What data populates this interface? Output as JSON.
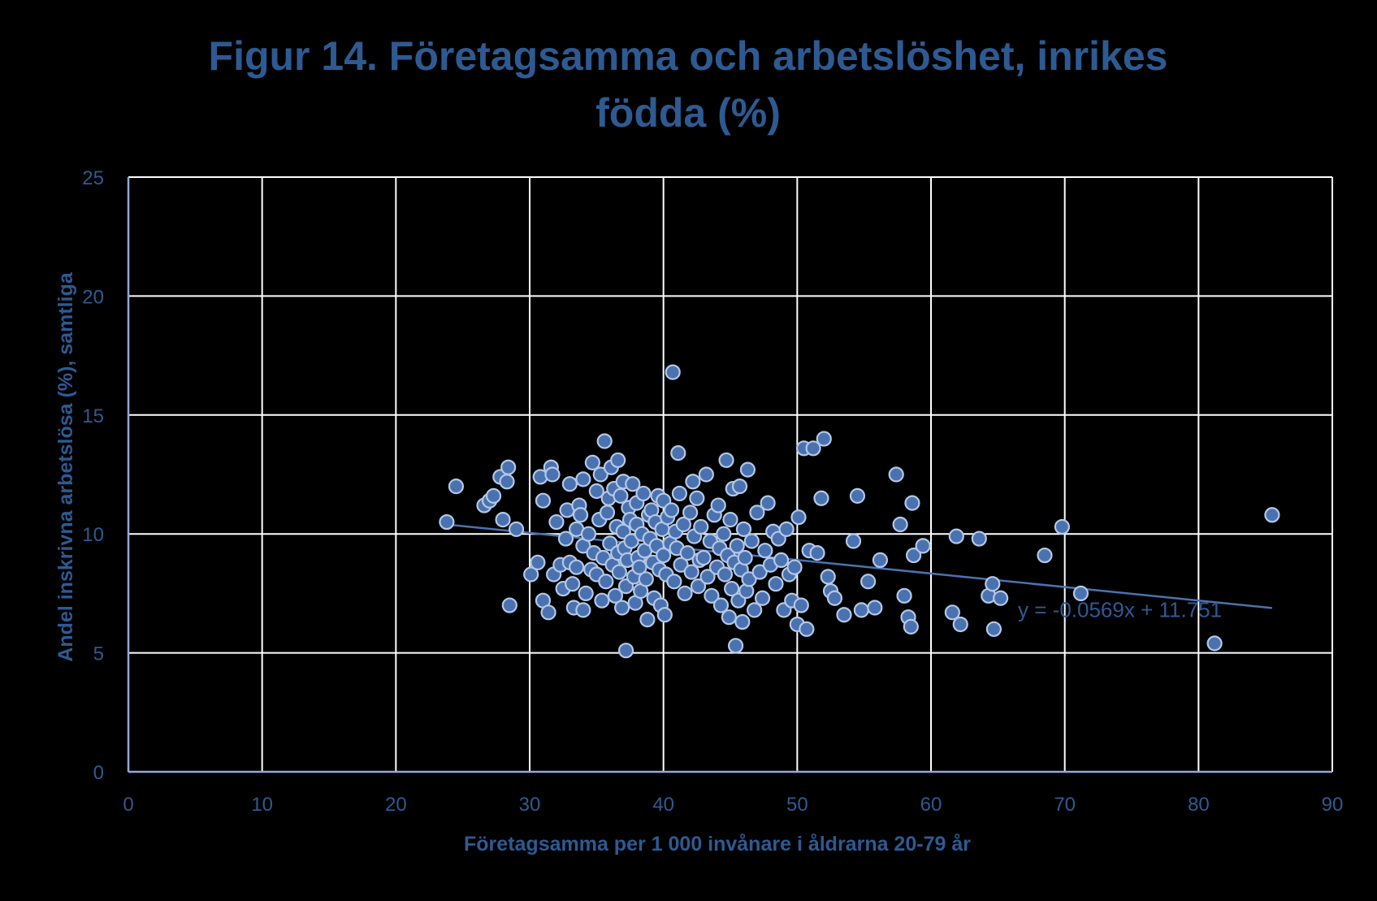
{
  "chart_data": {
    "type": "scatter",
    "title_line1": "Figur 14. Företagsamma och arbetslöshet, inrikes",
    "title_line2": "födda (%)",
    "xlabel": "Företagsamma per 1 000 invånare i åldrarna 20-79 år",
    "ylabel": "Andel inskrivna arbetslösa  (%), samtliga",
    "xlim": [
      0,
      90
    ],
    "ylim": [
      0,
      25
    ],
    "xticks": [
      0,
      10,
      20,
      30,
      40,
      50,
      60,
      70,
      80,
      90
    ],
    "yticks": [
      0,
      5,
      10,
      15,
      20,
      25
    ],
    "grid": true,
    "colors": {
      "background": "#000000",
      "grid": "#ffffff",
      "axis_text": "#2e5a92",
      "marker_fill": "#4a72b0",
      "marker_stroke": "#b4c8e6",
      "trendline": "#4a72b0"
    },
    "trendline": {
      "slope": -0.0569,
      "intercept": 11.751,
      "x_range": [
        23.5,
        85.5
      ],
      "equation": "y = -0.0569x + 11.751"
    },
    "points": [
      [
        23.8,
        10.5
      ],
      [
        24.5,
        12.0
      ],
      [
        26.6,
        11.2
      ],
      [
        27.0,
        11.4
      ],
      [
        27.3,
        11.6
      ],
      [
        27.8,
        12.4
      ],
      [
        28.0,
        10.6
      ],
      [
        28.3,
        12.2
      ],
      [
        28.4,
        12.8
      ],
      [
        28.5,
        7.0
      ],
      [
        29.0,
        10.2
      ],
      [
        30.1,
        8.3
      ],
      [
        30.6,
        8.8
      ],
      [
        30.8,
        12.4
      ],
      [
        31.0,
        11.4
      ],
      [
        31.0,
        7.2
      ],
      [
        31.4,
        6.7
      ],
      [
        31.6,
        12.8
      ],
      [
        31.7,
        12.5
      ],
      [
        31.8,
        8.3
      ],
      [
        32.0,
        10.5
      ],
      [
        32.3,
        8.7
      ],
      [
        32.5,
        7.7
      ],
      [
        32.7,
        9.8
      ],
      [
        32.8,
        11.0
      ],
      [
        33.0,
        8.8
      ],
      [
        33.0,
        12.1
      ],
      [
        33.2,
        7.9
      ],
      [
        33.3,
        6.9
      ],
      [
        33.5,
        8.6
      ],
      [
        33.5,
        10.2
      ],
      [
        33.7,
        11.2
      ],
      [
        33.8,
        10.8
      ],
      [
        34.0,
        12.3
      ],
      [
        34.0,
        9.5
      ],
      [
        34.0,
        6.8
      ],
      [
        34.2,
        7.5
      ],
      [
        34.4,
        10.0
      ],
      [
        34.6,
        8.5
      ],
      [
        34.7,
        13.0
      ],
      [
        34.8,
        9.2
      ],
      [
        35.0,
        11.8
      ],
      [
        35.0,
        8.3
      ],
      [
        35.2,
        10.6
      ],
      [
        35.3,
        12.5
      ],
      [
        35.4,
        7.2
      ],
      [
        35.5,
        9.0
      ],
      [
        35.6,
        13.9
      ],
      [
        35.7,
        8.0
      ],
      [
        35.8,
        10.9
      ],
      [
        35.9,
        11.5
      ],
      [
        36.0,
        9.6
      ],
      [
        36.1,
        12.8
      ],
      [
        36.2,
        8.7
      ],
      [
        36.3,
        11.9
      ],
      [
        36.4,
        7.4
      ],
      [
        36.5,
        10.3
      ],
      [
        36.6,
        13.1
      ],
      [
        36.6,
        9.2
      ],
      [
        36.7,
        8.4
      ],
      [
        36.8,
        11.6
      ],
      [
        36.9,
        6.9
      ],
      [
        37.0,
        10.1
      ],
      [
        37.0,
        12.2
      ],
      [
        37.1,
        9.4
      ],
      [
        37.2,
        7.8
      ],
      [
        37.2,
        5.1
      ],
      [
        37.3,
        8.9
      ],
      [
        37.4,
        11.1
      ],
      [
        37.5,
        10.6
      ],
      [
        37.6,
        9.7
      ],
      [
        37.7,
        12.1
      ],
      [
        37.8,
        8.2
      ],
      [
        37.9,
        7.1
      ],
      [
        38.0,
        10.4
      ],
      [
        38.0,
        11.3
      ],
      [
        38.1,
        9.0
      ],
      [
        38.2,
        8.6
      ],
      [
        38.3,
        7.6
      ],
      [
        38.4,
        10.0
      ],
      [
        38.5,
        11.7
      ],
      [
        38.6,
        9.3
      ],
      [
        38.7,
        8.1
      ],
      [
        38.8,
        6.4
      ],
      [
        38.9,
        10.8
      ],
      [
        39.0,
        9.8
      ],
      [
        39.1,
        11.0
      ],
      [
        39.2,
        8.8
      ],
      [
        39.3,
        7.3
      ],
      [
        39.4,
        10.5
      ],
      [
        39.5,
        9.5
      ],
      [
        39.6,
        11.6
      ],
      [
        39.7,
        8.5
      ],
      [
        39.8,
        7.0
      ],
      [
        39.9,
        10.2
      ],
      [
        40.0,
        9.1
      ],
      [
        40.0,
        11.4
      ],
      [
        40.1,
        6.6
      ],
      [
        40.2,
        8.3
      ],
      [
        40.3,
        10.7
      ],
      [
        40.5,
        9.6
      ],
      [
        40.6,
        11.0
      ],
      [
        40.7,
        16.8
      ],
      [
        40.8,
        8.0
      ],
      [
        40.9,
        10.1
      ],
      [
        41.0,
        9.4
      ],
      [
        41.1,
        13.4
      ],
      [
        41.2,
        11.7
      ],
      [
        41.3,
        8.7
      ],
      [
        41.5,
        10.4
      ],
      [
        41.6,
        7.5
      ],
      [
        41.8,
        9.2
      ],
      [
        42.0,
        10.9
      ],
      [
        42.1,
        8.4
      ],
      [
        42.2,
        12.2
      ],
      [
        42.3,
        9.9
      ],
      [
        42.5,
        11.5
      ],
      [
        42.6,
        7.8
      ],
      [
        42.7,
        8.9
      ],
      [
        42.8,
        10.3
      ],
      [
        43.0,
        9.0
      ],
      [
        43.2,
        12.5
      ],
      [
        43.3,
        8.2
      ],
      [
        43.5,
        9.7
      ],
      [
        43.6,
        7.4
      ],
      [
        43.8,
        10.8
      ],
      [
        44.0,
        8.6
      ],
      [
        44.1,
        11.2
      ],
      [
        44.2,
        9.4
      ],
      [
        44.3,
        7.0
      ],
      [
        44.5,
        10.0
      ],
      [
        44.6,
        8.3
      ],
      [
        44.7,
        13.1
      ],
      [
        44.8,
        9.1
      ],
      [
        44.9,
        6.5
      ],
      [
        45.0,
        10.6
      ],
      [
        45.1,
        7.7
      ],
      [
        45.2,
        11.9
      ],
      [
        45.3,
        8.8
      ],
      [
        45.4,
        5.3
      ],
      [
        45.5,
        9.5
      ],
      [
        45.6,
        7.2
      ],
      [
        45.7,
        12.0
      ],
      [
        45.8,
        8.5
      ],
      [
        45.9,
        6.3
      ],
      [
        46.0,
        10.2
      ],
      [
        46.1,
        9.0
      ],
      [
        46.2,
        7.6
      ],
      [
        46.3,
        12.7
      ],
      [
        46.4,
        8.1
      ],
      [
        46.6,
        9.7
      ],
      [
        46.8,
        6.8
      ],
      [
        47.0,
        10.9
      ],
      [
        47.2,
        8.4
      ],
      [
        47.4,
        7.3
      ],
      [
        47.6,
        9.3
      ],
      [
        47.8,
        11.3
      ],
      [
        48.0,
        8.7
      ],
      [
        48.2,
        10.1
      ],
      [
        48.4,
        7.9
      ],
      [
        48.6,
        9.8
      ],
      [
        48.8,
        8.9
      ],
      [
        49.0,
        6.8
      ],
      [
        49.2,
        10.2
      ],
      [
        49.4,
        8.3
      ],
      [
        49.6,
        7.2
      ],
      [
        49.8,
        8.6
      ],
      [
        50.0,
        6.2
      ],
      [
        50.1,
        10.7
      ],
      [
        50.3,
        7.0
      ],
      [
        50.5,
        13.6
      ],
      [
        50.7,
        6.0
      ],
      [
        50.9,
        9.3
      ],
      [
        51.2,
        13.6
      ],
      [
        51.5,
        9.2
      ],
      [
        51.8,
        11.5
      ],
      [
        52.0,
        14.0
      ],
      [
        52.3,
        8.2
      ],
      [
        52.5,
        7.6
      ],
      [
        52.8,
        7.3
      ],
      [
        53.5,
        6.6
      ],
      [
        54.2,
        9.7
      ],
      [
        54.5,
        11.6
      ],
      [
        54.8,
        6.8
      ],
      [
        55.3,
        8.0
      ],
      [
        55.8,
        6.9
      ],
      [
        56.2,
        8.9
      ],
      [
        57.4,
        12.5
      ],
      [
        57.7,
        10.4
      ],
      [
        58.0,
        7.4
      ],
      [
        58.3,
        6.5
      ],
      [
        58.5,
        6.1
      ],
      [
        58.6,
        11.3
      ],
      [
        58.7,
        9.1
      ],
      [
        59.4,
        9.5
      ],
      [
        61.6,
        6.7
      ],
      [
        61.9,
        9.9
      ],
      [
        62.2,
        6.2
      ],
      [
        63.6,
        9.8
      ],
      [
        64.3,
        7.4
      ],
      [
        64.6,
        7.9
      ],
      [
        64.7,
        6.0
      ],
      [
        65.2,
        7.3
      ],
      [
        68.5,
        9.1
      ],
      [
        69.8,
        10.3
      ],
      [
        71.2,
        7.5
      ],
      [
        81.2,
        5.4
      ],
      [
        85.5,
        10.8
      ]
    ]
  }
}
